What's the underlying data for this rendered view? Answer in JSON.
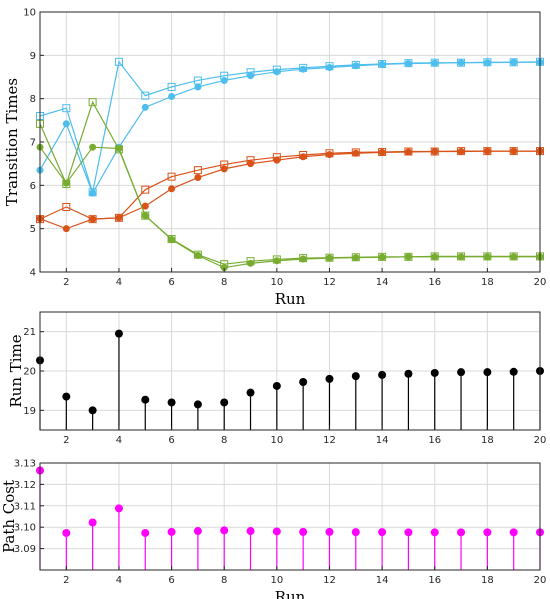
{
  "chart_data": [
    {
      "type": "line",
      "xlabel": "Run",
      "ylabel": "Transition Times",
      "xlim": [
        1,
        20
      ],
      "ylim": [
        4,
        10
      ],
      "xticks": [
        2,
        4,
        6,
        8,
        10,
        12,
        14,
        16,
        18,
        20
      ],
      "yticks": [
        4,
        5,
        6,
        7,
        8,
        9,
        10
      ],
      "grid": true,
      "x": [
        1,
        2,
        3,
        4,
        5,
        6,
        7,
        8,
        9,
        10,
        11,
        12,
        13,
        14,
        15,
        16,
        17,
        18,
        19,
        20
      ],
      "series": [
        {
          "color": "#4dbeee",
          "marker": "circle",
          "values": [
            6.35,
            7.42,
            5.82,
            6.88,
            7.8,
            8.05,
            8.27,
            8.42,
            8.53,
            8.62,
            8.68,
            8.72,
            8.76,
            8.79,
            8.81,
            8.82,
            8.83,
            8.83,
            8.84,
            8.84
          ]
        },
        {
          "color": "#4dbeee",
          "marker": "square",
          "values": [
            7.6,
            7.78,
            5.84,
            8.85,
            8.07,
            8.27,
            8.42,
            8.53,
            8.61,
            8.67,
            8.71,
            8.75,
            8.78,
            8.8,
            8.82,
            8.83,
            8.83,
            8.84,
            8.84,
            8.85
          ]
        },
        {
          "color": "#d95319",
          "marker": "circle",
          "values": [
            5.23,
            5.0,
            5.22,
            5.25,
            5.52,
            5.92,
            6.18,
            6.38,
            6.5,
            6.58,
            6.66,
            6.71,
            6.74,
            6.76,
            6.77,
            6.78,
            6.78,
            6.79,
            6.79,
            6.79
          ]
        },
        {
          "color": "#d95319",
          "marker": "square",
          "values": [
            5.22,
            5.5,
            5.22,
            5.25,
            5.9,
            6.2,
            6.35,
            6.48,
            6.58,
            6.65,
            6.7,
            6.74,
            6.76,
            6.77,
            6.78,
            6.78,
            6.79,
            6.79,
            6.79,
            6.79
          ]
        },
        {
          "color": "#77ac30",
          "marker": "circle",
          "values": [
            6.88,
            6.05,
            6.88,
            6.85,
            5.3,
            4.75,
            4.38,
            4.1,
            4.2,
            4.26,
            4.3,
            4.32,
            4.33,
            4.34,
            4.35,
            4.35,
            4.35,
            4.35,
            4.35,
            4.35
          ]
        },
        {
          "color": "#77ac30",
          "marker": "square",
          "values": [
            7.42,
            6.03,
            7.92,
            6.83,
            5.3,
            4.76,
            4.4,
            4.18,
            4.25,
            4.29,
            4.32,
            4.33,
            4.34,
            4.35,
            4.35,
            4.36,
            4.36,
            4.36,
            4.36,
            4.36
          ]
        }
      ]
    },
    {
      "type": "stem",
      "xlabel": "",
      "ylabel": "Run Time",
      "xlim": [
        1,
        20
      ],
      "ylim": [
        18.5,
        21.5
      ],
      "xticks": [
        2,
        4,
        6,
        8,
        10,
        12,
        14,
        16,
        18,
        20
      ],
      "yticks": [
        19,
        20,
        21
      ],
      "grid": true,
      "color": "#000000",
      "x": [
        1,
        2,
        3,
        4,
        5,
        6,
        7,
        8,
        9,
        10,
        11,
        12,
        13,
        14,
        15,
        16,
        17,
        18,
        19,
        20
      ],
      "values": [
        20.27,
        19.35,
        19.0,
        20.95,
        19.27,
        19.2,
        19.15,
        19.2,
        19.45,
        19.62,
        19.72,
        19.8,
        19.87,
        19.9,
        19.93,
        19.95,
        19.97,
        19.97,
        19.98,
        20.0
      ]
    },
    {
      "type": "stem",
      "xlabel": "Run",
      "ylabel": "Path Cost",
      "xlim": [
        1,
        20
      ],
      "ylim": [
        3.08,
        3.13
      ],
      "xticks": [
        2,
        4,
        6,
        8,
        10,
        12,
        14,
        16,
        18,
        20
      ],
      "yticks": [
        3.09,
        3.1,
        3.11,
        3.12,
        3.13
      ],
      "grid": true,
      "color": "#ff00ff",
      "x": [
        1,
        2,
        3,
        4,
        5,
        6,
        7,
        8,
        9,
        10,
        11,
        12,
        13,
        14,
        15,
        16,
        17,
        18,
        19,
        20
      ],
      "values": [
        3.1265,
        3.0973,
        3.1022,
        3.1088,
        3.0973,
        3.0978,
        3.0982,
        3.0985,
        3.0982,
        3.098,
        3.0978,
        3.0978,
        3.0977,
        3.0977,
        3.0976,
        3.0976,
        3.0976,
        3.0976,
        3.0976,
        3.0976
      ]
    }
  ]
}
